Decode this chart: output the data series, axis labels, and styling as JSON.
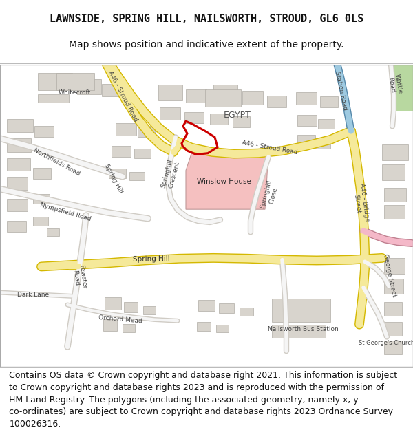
{
  "title_line1": "LAWNSIDE, SPRING HILL, NAILSWORTH, STROUD, GL6 0LS",
  "title_line2": "Map shows position and indicative extent of the property.",
  "footer_text": "Contains OS data © Crown copyright and database right 2021. This information is subject\nto Crown copyright and database rights 2023 and is reproduced with the permission of\nHM Land Registry. The polygons (including the associated geometry, namely x, y\nco-ordinates) are subject to Crown copyright and database rights 2023 Ordnance Survey\n100026316.",
  "bg_color": "#ffffff",
  "map_bg": "#f0ede6",
  "road_yellow": "#f5e99a",
  "road_yellow_stroke": "#d4b800",
  "road_gray": "#d0ccc5",
  "road_white": "#f5f5f5",
  "building_gray": "#d8d4cd",
  "building_pink": "#f5c0c0",
  "green_area": "#b8d8a0",
  "blue_road": "#9ecae1",
  "pink_road": "#f4b8c8",
  "red_outline": "#cc0000",
  "title_fontsize": 11,
  "subtitle_fontsize": 10,
  "footer_fontsize": 9
}
